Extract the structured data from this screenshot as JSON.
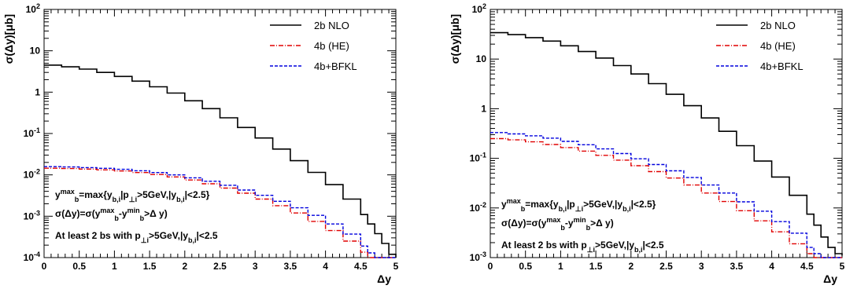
{
  "chart_data": [
    {
      "type": "line",
      "xlabel": "Δy",
      "ylabel": "σ(Δy)[μb]",
      "xlim": [
        0,
        5
      ],
      "ylim": [
        0.0001,
        100
      ],
      "yscale": "log",
      "x_ticks": [
        "0",
        "0.5",
        "1",
        "1.5",
        "2",
        "2.5",
        "3",
        "3.5",
        "4",
        "4.5",
        "5"
      ],
      "y_ticks": [
        {
          "value": 100,
          "base": "10",
          "exp": "2"
        },
        {
          "value": 10,
          "base": "10",
          "exp": ""
        },
        {
          "value": 1,
          "base": "1",
          "exp": ""
        },
        {
          "value": 0.1,
          "base": "10",
          "exp": "-1"
        },
        {
          "value": 0.01,
          "base": "10",
          "exp": "-2"
        },
        {
          "value": 0.001,
          "base": "10",
          "exp": "-3"
        },
        {
          "value": 0.0001,
          "base": "10",
          "exp": "-4"
        }
      ],
      "legend": {
        "placement": "top-right"
      },
      "annotations": [
        {
          "text": "y_b^max=max{y_b,i|p_⊥i>5GeV,|y_b,i|<2.5}",
          "main": "y",
          "parts": [
            {
              "t": "max",
              "s": "sup"
            },
            {
              "t": "b",
              "s": "sub"
            },
            {
              "t": "=max{y",
              "s": ""
            },
            {
              "t": "b,i",
              "s": "sub"
            },
            {
              "t": "|p",
              "s": ""
            },
            {
              "t": "⊥i",
              "s": "sub"
            },
            {
              "t": ">5GeV,|y",
              "s": ""
            },
            {
              "t": "b,i",
              "s": "sub"
            },
            {
              "t": "|<2.5}",
              "s": ""
            }
          ]
        },
        {
          "text": "σ(Δy)=σ(y_b^max-y_b^min>Δ y)",
          "main": "σ(Δy)=σ(y",
          "parts": [
            {
              "t": "max",
              "s": "sup"
            },
            {
              "t": "b",
              "s": "sub"
            },
            {
              "t": "-y",
              "s": ""
            },
            {
              "t": "min",
              "s": "sup"
            },
            {
              "t": "b",
              "s": "sub"
            },
            {
              "t": ">Δ y)",
              "s": ""
            }
          ]
        },
        {
          "text": "At least 2 bs with p_⊥i>5GeV,|y_b,i|<2.5",
          "main": "At least 2 bs with p",
          "parts": [
            {
              "t": "⊥i",
              "s": "sub"
            },
            {
              "t": ">5GeV,|y",
              "s": ""
            },
            {
              "t": "b,i",
              "s": "sub"
            },
            {
              "t": "|<2.5",
              "s": ""
            }
          ]
        }
      ],
      "x": [
        0.0,
        0.25,
        0.5,
        0.75,
        1.0,
        1.25,
        1.5,
        1.75,
        2.0,
        2.25,
        2.5,
        2.75,
        3.0,
        3.25,
        3.5,
        3.75,
        4.0,
        4.25,
        4.5,
        4.6,
        4.7,
        4.8,
        4.9,
        5.0
      ],
      "series": [
        {
          "name": "2b NLO",
          "color": "#000000",
          "dash": "solid",
          "values": [
            4.5,
            4.1,
            3.6,
            3.0,
            2.4,
            1.85,
            1.35,
            0.95,
            0.62,
            0.4,
            0.24,
            0.14,
            0.078,
            0.042,
            0.022,
            0.0115,
            0.0058,
            0.0026,
            0.0011,
            0.00065,
            0.00038,
            0.00022,
            0.00012,
            0.0001
          ]
        },
        {
          "name": "4b (HE)",
          "color": "#e00000",
          "dash": "6 2 1 2",
          "values": [
            0.0145,
            0.0142,
            0.0138,
            0.0132,
            0.0124,
            0.0114,
            0.0102,
            0.0089,
            0.0075,
            0.0061,
            0.0048,
            0.0036,
            0.0026,
            0.0018,
            0.0012,
            0.00075,
            0.00045,
            0.00025,
            0.000135,
            0.0001,
            0.0001,
            0.0001,
            0.0001,
            0.0001
          ]
        },
        {
          "name": "4b+BFKL",
          "color": "#0000dd",
          "dash": "4 2",
          "values": [
            0.0158,
            0.0155,
            0.015,
            0.0144,
            0.0136,
            0.0126,
            0.0114,
            0.01,
            0.0085,
            0.007,
            0.0056,
            0.0043,
            0.0032,
            0.0023,
            0.0016,
            0.00105,
            0.00065,
            0.00037,
            0.00019,
            0.00013,
            0.0001,
            0.0001,
            0.0001,
            0.0001
          ]
        }
      ]
    },
    {
      "type": "line",
      "xlabel": "Δy",
      "ylabel": "σ(Δy)[μb]",
      "xlim": [
        0,
        5
      ],
      "ylim": [
        0.001,
        100
      ],
      "yscale": "log",
      "x_ticks": [
        "0",
        "0.5",
        "1",
        "1.5",
        "2",
        "2.5",
        "3",
        "3.5",
        "4",
        "4.5",
        "5"
      ],
      "y_ticks": [
        {
          "value": 100,
          "base": "10",
          "exp": "2"
        },
        {
          "value": 10,
          "base": "10",
          "exp": ""
        },
        {
          "value": 1,
          "base": "1",
          "exp": ""
        },
        {
          "value": 0.1,
          "base": "10",
          "exp": "-1"
        },
        {
          "value": 0.01,
          "base": "10",
          "exp": "-2"
        },
        {
          "value": 0.001,
          "base": "10",
          "exp": "-3"
        }
      ],
      "legend": {
        "placement": "top-right"
      },
      "annotations": [
        {
          "text": "y_b^max=max{y_b,i|p_⊥i>5GeV,|y_b,i|<2.5}",
          "main": "y",
          "parts": [
            {
              "t": "max",
              "s": "sup"
            },
            {
              "t": "b",
              "s": "sub"
            },
            {
              "t": "=max{y",
              "s": ""
            },
            {
              "t": "b,i",
              "s": "sub"
            },
            {
              "t": "|p",
              "s": ""
            },
            {
              "t": "⊥i",
              "s": "sub"
            },
            {
              "t": ">5GeV,|y",
              "s": ""
            },
            {
              "t": "b,i",
              "s": "sub"
            },
            {
              "t": "|<2.5}",
              "s": ""
            }
          ]
        },
        {
          "text": "σ(Δy)=σ(y_b^max-y_b^min>Δ y)",
          "main": "σ(Δy)=σ(y",
          "parts": [
            {
              "t": "max",
              "s": "sup"
            },
            {
              "t": "b",
              "s": "sub"
            },
            {
              "t": "-y",
              "s": ""
            },
            {
              "t": "min",
              "s": "sup"
            },
            {
              "t": "b",
              "s": "sub"
            },
            {
              "t": ">Δ y)",
              "s": ""
            }
          ]
        },
        {
          "text": "At least 2 bs with p_⊥i>5GeV,|y_b,i|<2.5",
          "main": "At least 2 bs with p",
          "parts": [
            {
              "t": "⊥i",
              "s": "sub"
            },
            {
              "t": ">5GeV,|y",
              "s": ""
            },
            {
              "t": "b,i",
              "s": "sub"
            },
            {
              "t": "|<2.5",
              "s": ""
            }
          ]
        }
      ],
      "x": [
        0.0,
        0.25,
        0.5,
        0.75,
        1.0,
        1.25,
        1.5,
        1.75,
        2.0,
        2.25,
        2.5,
        2.75,
        3.0,
        3.25,
        3.5,
        3.75,
        4.0,
        4.25,
        4.5,
        4.6,
        4.7,
        4.8,
        4.9,
        5.0
      ],
      "series": [
        {
          "name": "2b NLO",
          "color": "#000000",
          "dash": "solid",
          "values": [
            34,
            31,
            27,
            23,
            18.5,
            14.2,
            10.5,
            7.4,
            5.0,
            3.2,
            1.95,
            1.15,
            0.65,
            0.35,
            0.18,
            0.088,
            0.042,
            0.018,
            0.0075,
            0.0045,
            0.0026,
            0.0016,
            0.0012,
            0.0011
          ]
        },
        {
          "name": "4b (HE)",
          "color": "#e00000",
          "dash": "6 2 1 2",
          "values": [
            0.25,
            0.235,
            0.215,
            0.19,
            0.165,
            0.14,
            0.115,
            0.092,
            0.071,
            0.054,
            0.04,
            0.029,
            0.02,
            0.0135,
            0.0088,
            0.0055,
            0.0033,
            0.0019,
            0.0012,
            0.001,
            0.001,
            0.001,
            0.001,
            0.001
          ]
        },
        {
          "name": "4b+BFKL",
          "color": "#0000dd",
          "dash": "4 2",
          "values": [
            0.33,
            0.31,
            0.285,
            0.255,
            0.22,
            0.188,
            0.155,
            0.125,
            0.098,
            0.075,
            0.056,
            0.041,
            0.029,
            0.02,
            0.0133,
            0.0086,
            0.0053,
            0.0031,
            0.0016,
            0.0012,
            0.001,
            0.001,
            0.001,
            0.001
          ]
        }
      ]
    }
  ]
}
